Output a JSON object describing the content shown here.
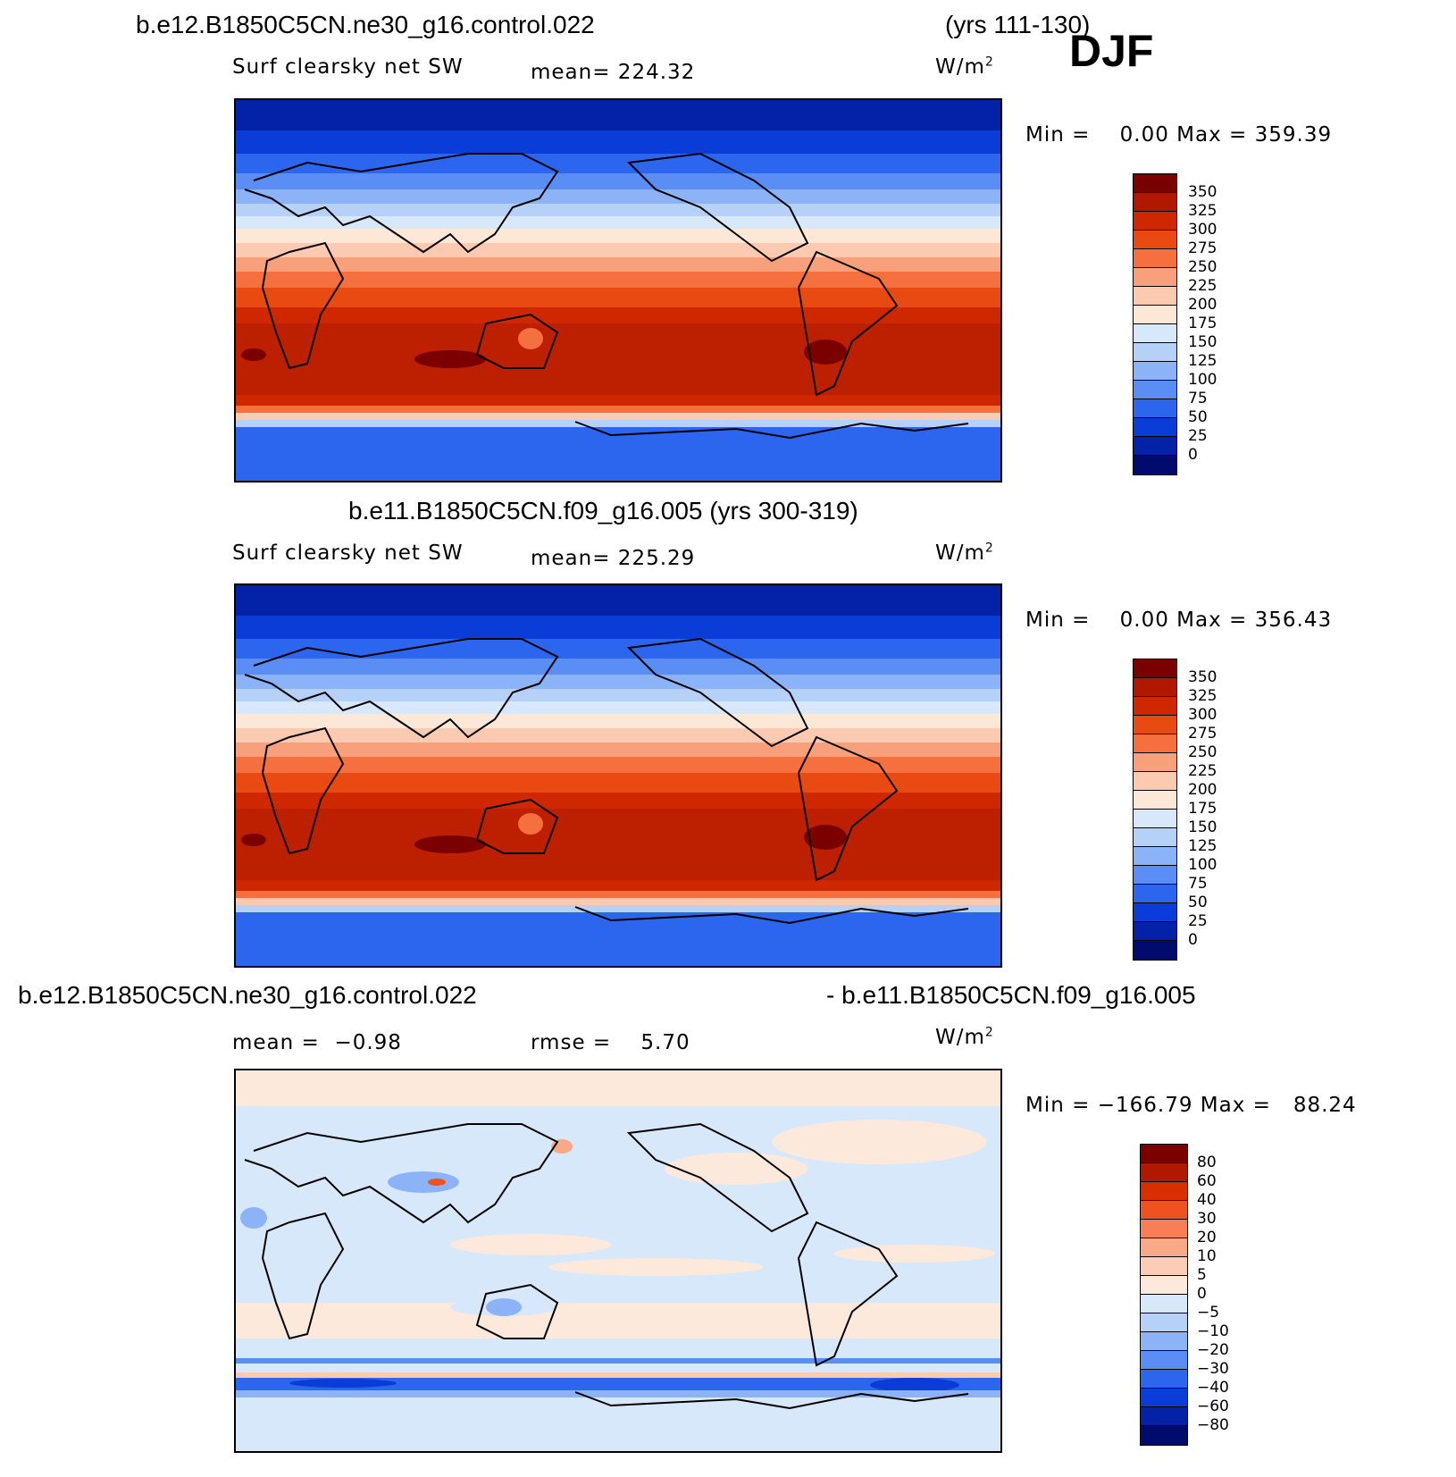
{
  "season": "DJF",
  "panels": [
    {
      "case_title": "b.e12.B1850C5CN.ne30_g16.control.022",
      "years": "(yrs 111-130)",
      "variable": "Surf clearsky net SW",
      "stat": "mean= 224.32",
      "units": "W/m",
      "units_sup": "2",
      "minmax": "Min =    0.00 Max = 359.39"
    },
    {
      "case_title": "b.e11.B1850C5CN.f09_g16.005 (yrs 300-319)",
      "variable": "Surf clearsky net SW",
      "stat": "mean= 225.29",
      "units": "W/m",
      "units_sup": "2",
      "minmax": "Min =    0.00 Max = 356.43"
    },
    {
      "case_title_left": "b.e12.B1850C5CN.ne30_g16.control.022",
      "case_title_right": "- b.e11.B1850C5CN.f09_g16.005",
      "stat_mean": "mean =  −0.98",
      "stat_rmse": "rmse =    5.70",
      "units": "W/m",
      "units_sup": "2",
      "minmax": "Min = −166.79 Max =   88.24"
    }
  ],
  "colorbars": {
    "abs": {
      "labels": [
        "350",
        "325",
        "300",
        "275",
        "250",
        "225",
        "200",
        "175",
        "150",
        "125",
        "100",
        "75",
        "50",
        "25",
        "0"
      ],
      "colors": [
        "#7b0000",
        "#b01800",
        "#cf2800",
        "#e84a12",
        "#f66f3e",
        "#f8a07c",
        "#fccab0",
        "#fde8d8",
        "#d7e8fa",
        "#b6d1f8",
        "#8cb3f7",
        "#5a8ef5",
        "#2c66ee",
        "#0a3cd8",
        "#0322a8",
        "#010b6e"
      ]
    },
    "diff": {
      "labels": [
        "80",
        "60",
        "40",
        "30",
        "20",
        "10",
        "5",
        "0",
        "−5",
        "−10",
        "−20",
        "−30",
        "−40",
        "−60",
        "−80"
      ],
      "colors": [
        "#7b0000",
        "#b01800",
        "#d63000",
        "#ee5220",
        "#f97e55",
        "#f9a888",
        "#fcccb6",
        "#fde9dc",
        "#d7e8fa",
        "#b6d1f8",
        "#8cb3f7",
        "#5a8ef5",
        "#2c66ee",
        "#0a3cd8",
        "#0322a8",
        "#010b6e"
      ]
    }
  }
}
